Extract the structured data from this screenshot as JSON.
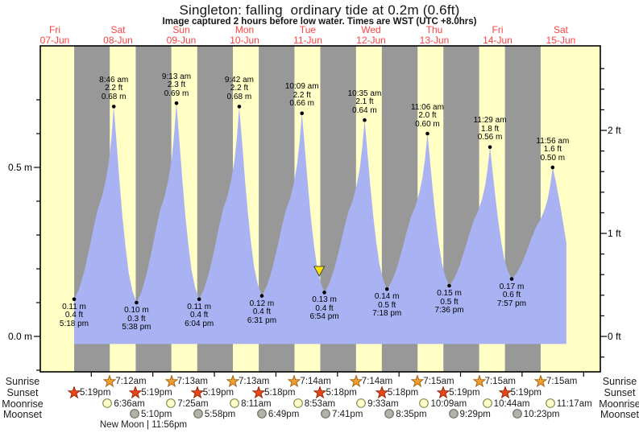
{
  "title": "Singleton: falling  ordinary tide at 0.2m (0.6ft)",
  "subtitle": "Image captured 2 hours before low water. Times are WST (UTC +8.0hrs)",
  "day_labels": [
    {
      "name": "Fri",
      "date": "07-Jun"
    },
    {
      "name": "Sat",
      "date": "08-Jun"
    },
    {
      "name": "Sun",
      "date": "09-Jun"
    },
    {
      "name": "Mon",
      "date": "10-Jun"
    },
    {
      "name": "Tue",
      "date": "11-Jun"
    },
    {
      "name": "Wed",
      "date": "12-Jun"
    },
    {
      "name": "Thu",
      "date": "13-Jun"
    },
    {
      "name": "Fri",
      "date": "14-Jun"
    },
    {
      "name": "Sat",
      "date": "15-Jun"
    }
  ],
  "axes": {
    "left_m": [
      {
        "label": "0.5 m",
        "m": 0.5
      },
      {
        "label": "0.0 m",
        "m": 0.0
      }
    ],
    "right_ft": [
      {
        "label": "2 ft",
        "ft": 2
      },
      {
        "label": "1 ft",
        "ft": 1
      },
      {
        "label": "0 ft",
        "ft": 0
      }
    ]
  },
  "chart_data": {
    "type": "area",
    "x_unit": "hours since Fri 07-Jun 00:00",
    "y_unit": "metres",
    "high_tides": [
      {
        "t": 32.767,
        "time": "8:46 am",
        "ft": "2.2 ft",
        "m": "0.68 m",
        "height_m": 0.68
      },
      {
        "t": 57.217,
        "time": "9:13 am",
        "ft": "2.3 ft",
        "m": "0.69 m",
        "height_m": 0.69
      },
      {
        "t": 81.7,
        "time": "9:42 am",
        "ft": "2.2 ft",
        "m": "0.68 m",
        "height_m": 0.68
      },
      {
        "t": 106.15,
        "time": "10:09 am",
        "ft": "2.2 ft",
        "m": "0.66 m",
        "height_m": 0.66
      },
      {
        "t": 130.583,
        "time": "10:35 am",
        "ft": "2.1 ft",
        "m": "0.64 m",
        "height_m": 0.64
      },
      {
        "t": 155.1,
        "time": "11:06 am",
        "ft": "2.0 ft",
        "m": "0.60 m",
        "height_m": 0.6
      },
      {
        "t": 179.483,
        "time": "11:29 am",
        "ft": "1.8 ft",
        "m": "0.56 m",
        "height_m": 0.56
      },
      {
        "t": 203.933,
        "time": "11:56 am",
        "ft": "1.6 ft",
        "m": "0.50 m",
        "height_m": 0.5
      }
    ],
    "low_tides": [
      {
        "t": 17.3,
        "m": "0.11 m",
        "ft": "0.4 ft",
        "time": "5:18 pm",
        "height_m": 0.11
      },
      {
        "t": 41.633,
        "m": "0.10 m",
        "ft": "0.3 ft",
        "time": "5:38 pm",
        "height_m": 0.1
      },
      {
        "t": 66.067,
        "m": "0.11 m",
        "ft": "0.4 ft",
        "time": "6:04 pm",
        "height_m": 0.11
      },
      {
        "t": 90.517,
        "m": "0.12 m",
        "ft": "0.4 ft",
        "time": "6:31 pm",
        "height_m": 0.12
      },
      {
        "t": 114.9,
        "m": "0.13 m",
        "ft": "0.4 ft",
        "time": "6:54 pm",
        "height_m": 0.13
      },
      {
        "t": 139.3,
        "m": "0.14 m",
        "ft": "0.5 ft",
        "time": "7:18 pm",
        "height_m": 0.14
      },
      {
        "t": 163.6,
        "m": "0.15 m",
        "ft": "0.5 ft",
        "time": "7:36 pm",
        "height_m": 0.15
      },
      {
        "t": 187.95,
        "m": "0.17 m",
        "ft": "0.6 ft",
        "time": "7:57 pm",
        "height_m": 0.17
      }
    ],
    "curve_end": {
      "t": 209.3,
      "height_m": 0.276
    },
    "current_marker": {
      "t": 112.9
    }
  },
  "sun_moon": {
    "rows": [
      {
        "label": "Sunrise",
        "icon": "sunrise-star",
        "entries": [
          {
            "t": 31.2,
            "time": "7:12am"
          },
          {
            "t": 55.217,
            "time": "7:13am"
          },
          {
            "t": 79.217,
            "time": "7:13am"
          },
          {
            "t": 103.233,
            "time": "7:14am"
          },
          {
            "t": 127.233,
            "time": "7:14am"
          },
          {
            "t": 151.25,
            "time": "7:15am"
          },
          {
            "t": 175.25,
            "time": "7:15am"
          },
          {
            "t": 199.25,
            "time": "7:15am"
          }
        ]
      },
      {
        "label": "Sunset",
        "icon": "sunset-star",
        "entries": [
          {
            "t": 17.317,
            "time": "5:19pm"
          },
          {
            "t": 41.317,
            "time": "5:19pm"
          },
          {
            "t": 65.317,
            "time": "5:19pm"
          },
          {
            "t": 89.3,
            "time": "5:18pm"
          },
          {
            "t": 113.3,
            "time": "5:18pm"
          },
          {
            "t": 137.3,
            "time": "5:18pm"
          },
          {
            "t": 161.317,
            "time": "5:19pm"
          },
          {
            "t": 185.317,
            "time": "5:19pm"
          }
        ]
      },
      {
        "label": "Moonrise",
        "icon": "moonrise-circle",
        "entries": [
          {
            "t": 30.6,
            "time": "6:36am"
          },
          {
            "t": 55.417,
            "time": "7:25am"
          },
          {
            "t": 80.183,
            "time": "8:11am"
          },
          {
            "t": 104.883,
            "time": "8:53am"
          },
          {
            "t": 129.55,
            "time": "9:33am"
          },
          {
            "t": 154.15,
            "time": "10:09am"
          },
          {
            "t": 178.733,
            "time": "10:44am"
          },
          {
            "t": 203.283,
            "time": "11:17am"
          }
        ]
      },
      {
        "label": "Moonset",
        "icon": "moonset-circle",
        "entries": [
          {
            "t": 41.167,
            "time": "5:10pm"
          },
          {
            "t": 65.967,
            "time": "5:58pm"
          },
          {
            "t": 90.817,
            "time": "6:49pm"
          },
          {
            "t": 115.683,
            "time": "7:41pm"
          },
          {
            "t": 140.583,
            "time": "8:35pm"
          },
          {
            "t": 165.483,
            "time": "9:29pm"
          },
          {
            "t": 190.383,
            "time": "10:23pm"
          }
        ]
      }
    ],
    "moon_phase": "New Moon | 11:56pm"
  },
  "colors": {
    "day_band": "#ffffc6",
    "night_band": "#989898",
    "tide_fill": "#a9b3f3",
    "date_red": "#ff4242",
    "frame": "#000000",
    "sunrise_star_fill": "#f0a030",
    "sunrise_star_stroke": "#a86414",
    "sunset_star_fill": "#e8481c",
    "sunset_star_stroke": "#9c2404",
    "moonrise_fill": "#ffffcc",
    "moonrise_stroke": "#8a8a50",
    "moonset_fill": "#b2b2a8",
    "moonset_stroke": "#6e6e66",
    "marker_yellow": "#ffe100"
  }
}
